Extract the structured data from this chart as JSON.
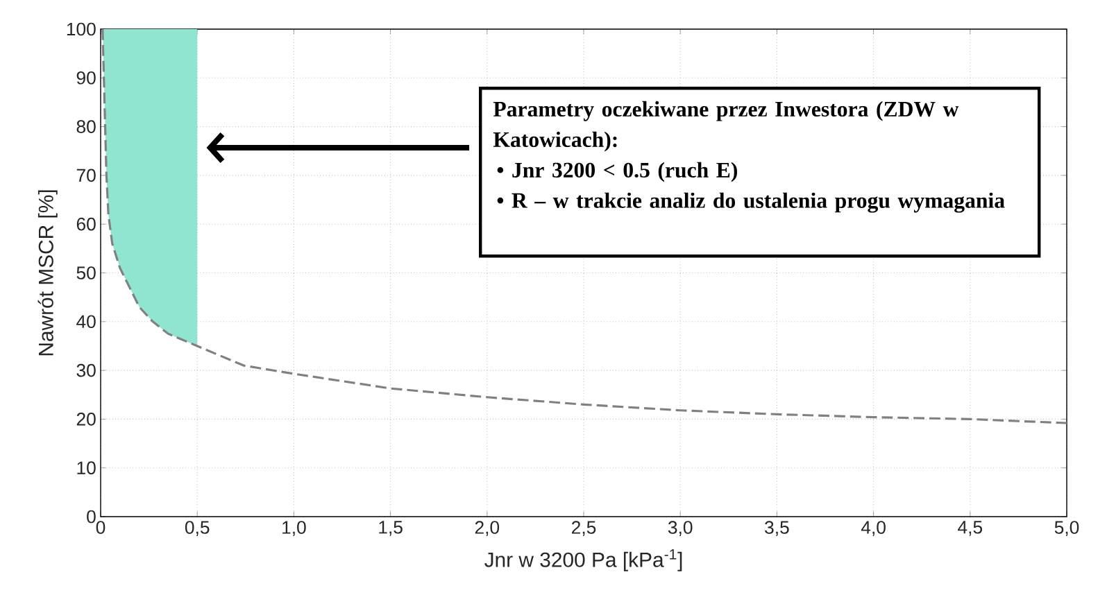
{
  "chart_data": {
    "type": "line",
    "xlabel": "Jnr w 3200 Pa [kPa$^{-1}$]",
    "ylabel": "Nawrót MSCR [%]",
    "x": [
      0.01,
      0.02,
      0.03,
      0.04,
      0.06,
      0.1,
      0.15,
      0.2,
      0.27,
      0.35,
      0.5,
      0.74,
      1.0,
      1.5,
      2.0,
      2.5,
      3.0,
      3.5,
      4.0,
      4.5,
      5.0
    ],
    "series": [
      {
        "color": "#808080",
        "values": [
          100,
          85,
          70,
          62,
          56,
          51,
          47,
          43,
          40,
          37.5,
          35,
          31,
          29.3,
          26.3,
          24.5,
          23,
          21.8,
          21,
          20.4,
          20,
          19.2
        ]
      }
    ],
    "xlim": [
      0,
      5
    ],
    "ylim": [
      0,
      100
    ],
    "xticks": [
      0,
      {
        "value": 0.5,
        "label": "0,5"
      },
      {
        "value": 1,
        "label": "1,0"
      },
      {
        "value": 1.5,
        "label": "1,5"
      },
      {
        "value": 2,
        "label": "2,0"
      },
      {
        "value": 2.5,
        "label": "2,5"
      },
      {
        "value": 3,
        "label": "3,0"
      },
      {
        "value": 3.5,
        "label": "3,5"
      },
      {
        "value": 4,
        "label": "4,0"
      },
      {
        "value": 4.5,
        "label": "4,5"
      },
      {
        "value": 5,
        "label": "5,0"
      }
    ],
    "yticks": [
      0,
      10,
      20,
      30,
      40,
      50,
      60,
      70,
      80,
      90,
      100
    ],
    "bands": [
      {
        "axis": "x",
        "from": 0,
        "to": 0.5,
        "color": "#8fe5d0"
      }
    ],
    "annotations": [
      "**Parametry oczekiwane przez Inwestora (ZDW w Katowicach):**",
      "**•  Jnr 3200 < 0.5 (ruch E)**",
      "**•  R – w trakcie analiz do ustalenia progu wymagania**"
    ],
    "grid": true,
    "marker": "none",
    "line_style": "dashed"
  }
}
